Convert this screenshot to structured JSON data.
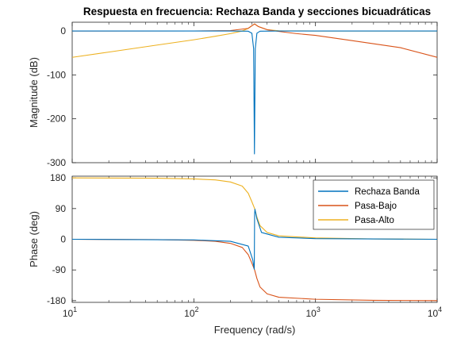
{
  "chart_data": [
    {
      "type": "line",
      "title": "Respuesta en frecuencia: Rechaza Banda y secciones bicuadráticas",
      "xlabel": "",
      "ylabel": "Magnitude (dB)",
      "xscale": "log",
      "xlim": [
        10,
        10000
      ],
      "ylim": [
        -300,
        20
      ],
      "yticks": [
        -300,
        -200,
        -100,
        0
      ],
      "grid": false,
      "series": [
        {
          "name": "Rechaza Banda",
          "color": "#0072BD",
          "points": [
            [
              10,
              0
            ],
            [
              100,
              0
            ],
            [
              200,
              0
            ],
            [
              280,
              -0.5
            ],
            [
              300,
              -5
            ],
            [
              310,
              -40
            ],
            [
              315,
              -280
            ],
            [
              320,
              -40
            ],
            [
              330,
              -5
            ],
            [
              350,
              -0.5
            ],
            [
              500,
              0
            ],
            [
              1000,
              0
            ],
            [
              10000,
              0
            ]
          ]
        },
        {
          "name": "Pasa-Bajo",
          "color": "#D95319",
          "points": [
            [
              10,
              0
            ],
            [
              100,
              0.1
            ],
            [
              200,
              1
            ],
            [
              280,
              6
            ],
            [
              300,
              12
            ],
            [
              316,
              16
            ],
            [
              340,
              10
            ],
            [
              400,
              3
            ],
            [
              500,
              -1
            ],
            [
              700,
              -6
            ],
            [
              1000,
              -10
            ],
            [
              2000,
              -22
            ],
            [
              5000,
              -38
            ],
            [
              10000,
              -60
            ]
          ]
        },
        {
          "name": "Pasa-Alto",
          "color": "#EDB120",
          "points": [
            [
              10,
              -60
            ],
            [
              20,
              -48
            ],
            [
              50,
              -32
            ],
            [
              100,
              -20
            ],
            [
              150,
              -12
            ],
            [
              200,
              -6
            ],
            [
              250,
              0
            ],
            [
              280,
              6
            ],
            [
              300,
              12
            ],
            [
              316,
              16
            ],
            [
              340,
              10
            ],
            [
              400,
              3
            ],
            [
              500,
              0.5
            ],
            [
              1000,
              0
            ],
            [
              10000,
              0
            ]
          ]
        }
      ]
    },
    {
      "type": "line",
      "title": "",
      "xlabel": "Frequency  (rad/s)",
      "ylabel": "Phase (deg)",
      "xscale": "log",
      "xlim": [
        10,
        10000
      ],
      "ylim": [
        -185,
        185
      ],
      "yticks": [
        -180,
        -90,
        0,
        90,
        180
      ],
      "xticks": [
        10,
        100,
        1000,
        10000
      ],
      "xtick_labels": [
        [
          "10",
          "1"
        ],
        [
          "10",
          "2"
        ],
        [
          "10",
          "3"
        ],
        [
          "10",
          "4"
        ]
      ],
      "grid": false,
      "legend": "top-right",
      "series": [
        {
          "name": "Rechaza Banda",
          "color": "#0072BD",
          "points": [
            [
              10,
              0
            ],
            [
              100,
              -2
            ],
            [
              200,
              -6
            ],
            [
              280,
              -20
            ],
            [
              305,
              -60
            ],
            [
              314,
              -88
            ],
            [
              316,
              75
            ],
            [
              318,
              88
            ],
            [
              330,
              60
            ],
            [
              360,
              20
            ],
            [
              500,
              6
            ],
            [
              1000,
              2
            ],
            [
              10000,
              0
            ]
          ]
        },
        {
          "name": "Pasa-Bajo",
          "color": "#D95319",
          "points": [
            [
              10,
              0
            ],
            [
              50,
              -1
            ],
            [
              100,
              -3
            ],
            [
              150,
              -6
            ],
            [
              200,
              -12
            ],
            [
              250,
              -24
            ],
            [
              280,
              -45
            ],
            [
              300,
              -70
            ],
            [
              316,
              -90
            ],
            [
              330,
              -115
            ],
            [
              350,
              -140
            ],
            [
              400,
              -160
            ],
            [
              500,
              -170
            ],
            [
              1000,
              -176
            ],
            [
              3000,
              -179
            ],
            [
              10000,
              -180
            ]
          ]
        },
        {
          "name": "Pasa-Alto",
          "color": "#EDB120",
          "points": [
            [
              10,
              180
            ],
            [
              50,
              179
            ],
            [
              100,
              177
            ],
            [
              150,
              174
            ],
            [
              200,
              168
            ],
            [
              250,
              156
            ],
            [
              280,
              135
            ],
            [
              300,
              110
            ],
            [
              316,
              90
            ],
            [
              330,
              65
            ],
            [
              350,
              40
            ],
            [
              400,
              20
            ],
            [
              500,
              10
            ],
            [
              1000,
              4
            ],
            [
              3000,
              1
            ],
            [
              10000,
              0
            ]
          ]
        }
      ]
    }
  ]
}
